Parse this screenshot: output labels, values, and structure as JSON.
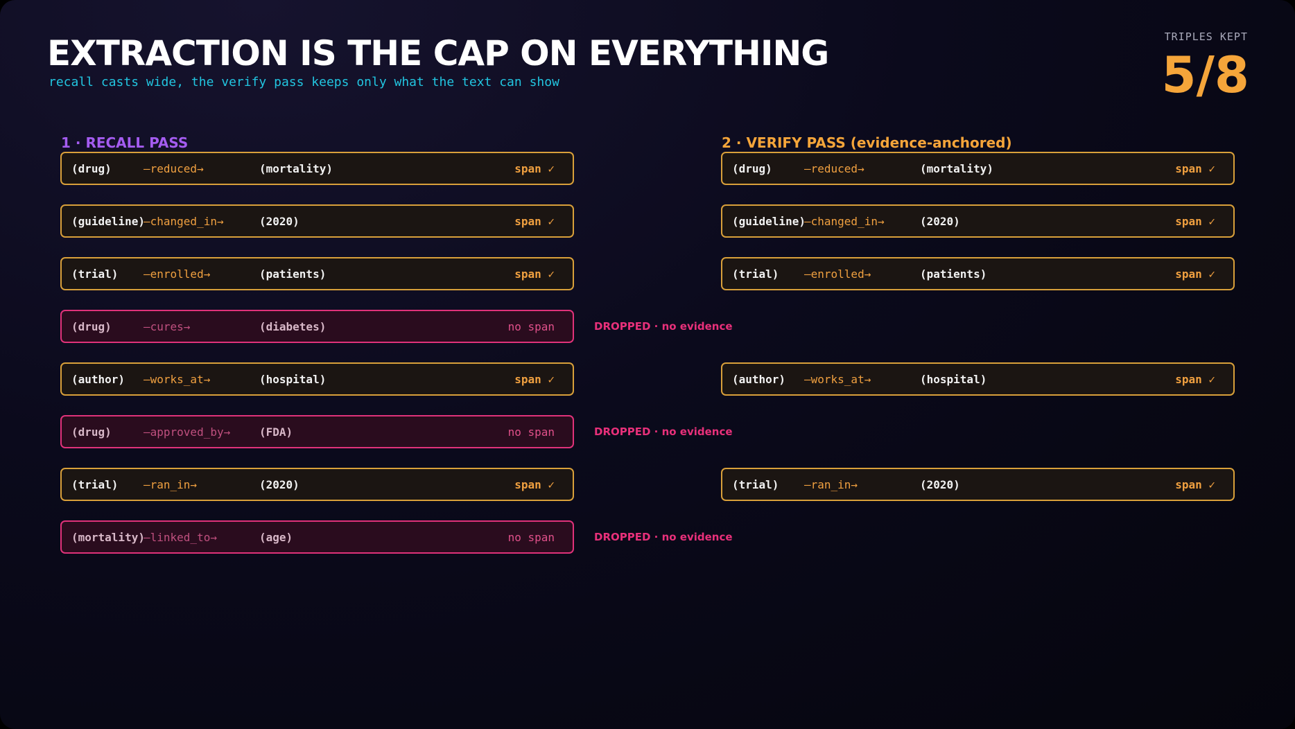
{
  "header": {
    "title": "EXTRACTION IS THE CAP ON EVERYTHING",
    "subtitle": "recall casts wide, the verify pass keeps only what the text can show",
    "kept_label": "TRIPLES KEPT",
    "kept_value": "5/8"
  },
  "recall": {
    "heading": "1 · RECALL PASS",
    "rows": [
      {
        "subject": "(drug)",
        "relation": "—reduced→",
        "object": "(mortality)",
        "status": "span ✓"
      },
      {
        "subject": "(guideline)",
        "relation": "—changed_in→",
        "object": "(2020)",
        "status": "span ✓"
      },
      {
        "subject": "(trial)",
        "relation": "—enrolled→",
        "object": "(patients)",
        "status": "span ✓"
      },
      {
        "subject": "(drug)",
        "relation": "—cures→",
        "object": "(diabetes)",
        "status": "no span",
        "note": "DROPPED · no evidence"
      },
      {
        "subject": "(author)",
        "relation": "—works_at→",
        "object": "(hospital)",
        "status": "span ✓"
      },
      {
        "subject": "(drug)",
        "relation": "—approved_by→",
        "object": "(FDA)",
        "status": "no span",
        "note": "DROPPED · no evidence"
      },
      {
        "subject": "(trial)",
        "relation": "—ran_in→",
        "object": "(2020)",
        "status": "span ✓"
      },
      {
        "subject": "(mortality)",
        "relation": "—linked_to→",
        "object": "(age)",
        "status": "no span",
        "note": "DROPPED · no evidence"
      }
    ]
  },
  "verify": {
    "heading": "2 · VERIFY PASS (evidence-anchored)",
    "rows": [
      {
        "slot": 0,
        "subject": "(drug)",
        "relation": "—reduced→",
        "object": "(mortality)",
        "status": "span ✓"
      },
      {
        "slot": 1,
        "subject": "(guideline)",
        "relation": "—changed_in→",
        "object": "(2020)",
        "status": "span ✓"
      },
      {
        "slot": 2,
        "subject": "(trial)",
        "relation": "—enrolled→",
        "object": "(patients)",
        "status": "span ✓"
      },
      {
        "slot": 4,
        "subject": "(author)",
        "relation": "—works_at→",
        "object": "(hospital)",
        "status": "span ✓"
      },
      {
        "slot": 6,
        "subject": "(trial)",
        "relation": "—ran_in→",
        "object": "(2020)",
        "status": "span ✓"
      }
    ]
  }
}
